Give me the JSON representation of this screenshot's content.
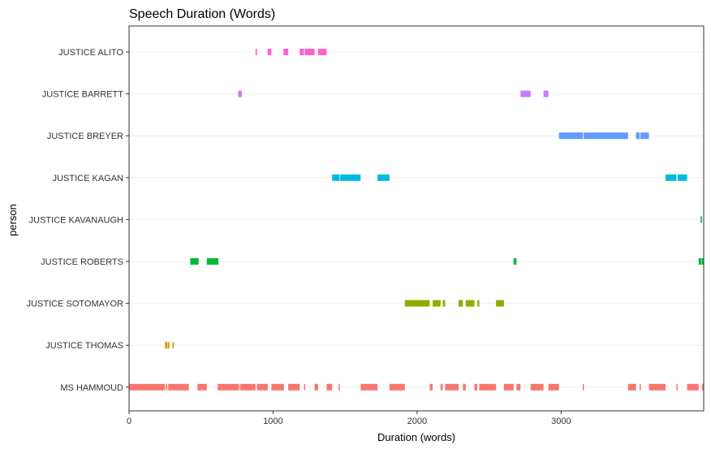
{
  "chart_data": {
    "type": "gantt",
    "title": "Speech Duration (Words)",
    "xlabel": "Duration (words)",
    "ylabel": "person",
    "xlim": [
      0,
      3990
    ],
    "x_ticks": [
      0,
      1000,
      2000,
      3000
    ],
    "grid": true,
    "legend": "none",
    "categories": [
      "JUSTICE ALITO",
      "JUSTICE BARRETT",
      "JUSTICE BREYER",
      "JUSTICE KAGAN",
      "JUSTICE KAVANAUGH",
      "JUSTICE ROBERTS",
      "JUSTICE SOTOMAYOR",
      "JUSTICE THOMAS",
      "MS HAMMOUD"
    ],
    "series": [
      {
        "color": "#FF61CC",
        "segments": [
          [
            878,
            888
          ],
          [
            962,
            988
          ],
          [
            1072,
            1105
          ],
          [
            1185,
            1215
          ],
          [
            1220,
            1288
          ],
          [
            1312,
            1372
          ]
        ]
      },
      {
        "color": "#C77CFF",
        "segments": [
          [
            758,
            783
          ],
          [
            2718,
            2788
          ],
          [
            2878,
            2912
          ]
        ]
      },
      {
        "color": "#619CFF",
        "segments": [
          [
            2985,
            3150
          ],
          [
            3155,
            3465
          ],
          [
            3520,
            3545
          ],
          [
            3550,
            3610
          ]
        ]
      },
      {
        "color": "#00B9E3",
        "segments": [
          [
            1410,
            1462
          ],
          [
            1466,
            1608
          ],
          [
            1725,
            1808
          ],
          [
            3725,
            3800
          ],
          [
            3808,
            3875
          ]
        ]
      },
      {
        "color": "#00BA9B",
        "segments": [
          [
            3968,
            3978
          ]
        ]
      },
      {
        "color": "#00BA38",
        "segments": [
          [
            425,
            483
          ],
          [
            540,
            620
          ],
          [
            2670,
            2690
          ],
          [
            3955,
            3975
          ],
          [
            3978,
            3990
          ]
        ]
      },
      {
        "color": "#93AA00",
        "segments": [
          [
            1915,
            2088
          ],
          [
            2108,
            2163
          ],
          [
            2178,
            2195
          ],
          [
            2288,
            2318
          ],
          [
            2338,
            2398
          ],
          [
            2418,
            2432
          ],
          [
            2548,
            2603
          ]
        ]
      },
      {
        "color": "#D39200",
        "segments": [
          [
            250,
            266
          ],
          [
            270,
            280
          ],
          [
            302,
            308
          ]
        ]
      },
      {
        "color": "#F8766D",
        "segments": [
          [
            0,
            248
          ],
          [
            255,
            265
          ],
          [
            272,
            415
          ],
          [
            475,
            540
          ],
          [
            615,
            763
          ],
          [
            768,
            773
          ],
          [
            778,
            878
          ],
          [
            888,
            963
          ],
          [
            988,
            1075
          ],
          [
            1105,
            1185
          ],
          [
            1215,
            1222
          ],
          [
            1288,
            1312
          ],
          [
            1372,
            1410
          ],
          [
            1455,
            1462
          ],
          [
            1608,
            1725
          ],
          [
            1808,
            1915
          ],
          [
            2088,
            2108
          ],
          [
            2163,
            2178
          ],
          [
            2195,
            2288
          ],
          [
            2318,
            2338
          ],
          [
            2398,
            2418
          ],
          [
            2432,
            2548
          ],
          [
            2603,
            2670
          ],
          [
            2690,
            2718
          ],
          [
            2788,
            2878
          ],
          [
            2912,
            2985
          ],
          [
            3150,
            3155
          ],
          [
            3465,
            3520
          ],
          [
            3545,
            3550
          ],
          [
            3610,
            3725
          ],
          [
            3800,
            3808
          ],
          [
            3875,
            3955
          ],
          [
            3978,
            3990
          ]
        ]
      }
    ]
  }
}
